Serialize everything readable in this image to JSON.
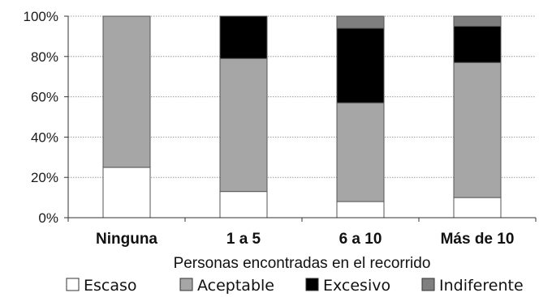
{
  "chart_data": {
    "type": "bar",
    "stacked": true,
    "percent": true,
    "categories": [
      "Ninguna",
      "1 a 5",
      "6 a 10",
      "Más de 10"
    ],
    "series": [
      {
        "name": "Escaso",
        "color": "#ffffff",
        "values": [
          25,
          13,
          8,
          10
        ]
      },
      {
        "name": "Aceptable",
        "color": "#a6a6a6",
        "values": [
          75,
          66,
          49,
          67
        ]
      },
      {
        "name": "Excesivo",
        "color": "#000000",
        "values": [
          0,
          21,
          37,
          18
        ]
      },
      {
        "name": "Indiferente",
        "color": "#7f7f7f",
        "values": [
          0,
          0,
          6,
          5
        ]
      }
    ],
    "xlabel": "Personas encontradas en el recorrido",
    "ylabel": "",
    "ylim": [
      0,
      100
    ],
    "yticks": [
      "0%",
      "20%",
      "40%",
      "60%",
      "80%",
      "100%"
    ],
    "grid": true,
    "legend": "bottom"
  }
}
